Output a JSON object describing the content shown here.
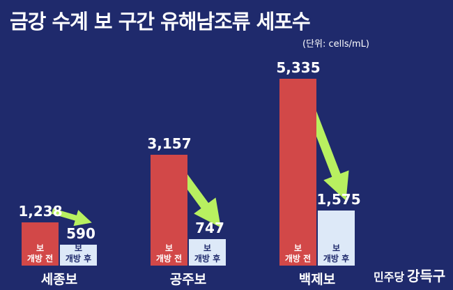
{
  "chart_data": {
    "type": "bar",
    "title": "금강 수계 보 구간 유해남조류 세포수",
    "subtitle": "(단위: cells/mL)",
    "categories": [
      "세종보",
      "공주보",
      "백제보"
    ],
    "series": [
      {
        "name": "보\n개방 전",
        "color": "#d24848",
        "values": [
          1238,
          3157,
          5335
        ],
        "value_labels": [
          "1,238",
          "3,157",
          "5,335"
        ]
      },
      {
        "name": "보\n개방 후",
        "color": "#dde9f8",
        "values": [
          590,
          747,
          1575
        ],
        "value_labels": [
          "590",
          "747",
          "1,575"
        ]
      }
    ],
    "arrow_color": "#b8f060",
    "logo": {
      "party": "민주당",
      "name": "강득구"
    }
  }
}
